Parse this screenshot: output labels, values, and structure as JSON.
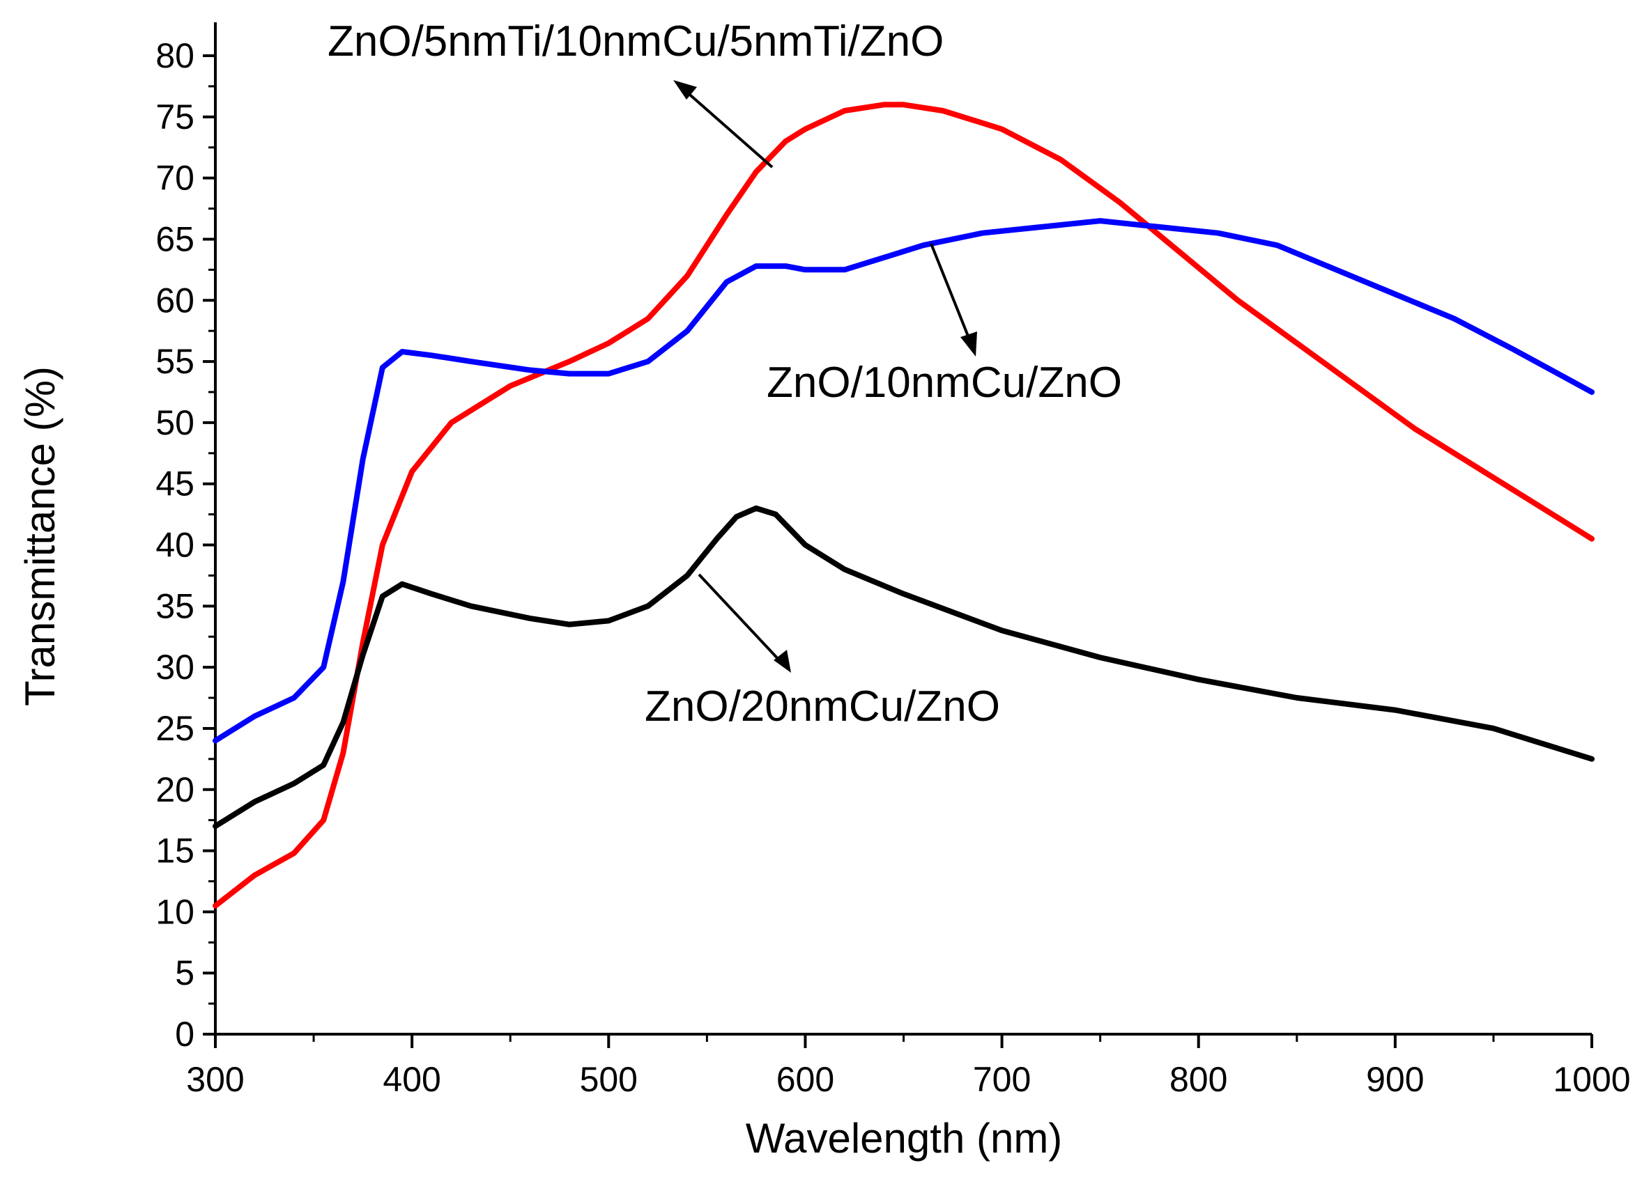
{
  "chart_data": {
    "type": "line",
    "xlabel": "Wavelength (nm)",
    "ylabel": "Transmittance (%)",
    "xlim": [
      300,
      1000
    ],
    "ylim": [
      0,
      82
    ],
    "xticks": [
      300,
      400,
      500,
      600,
      700,
      800,
      900,
      1000
    ],
    "yticks": [
      0,
      5,
      10,
      15,
      20,
      25,
      30,
      35,
      40,
      45,
      50,
      55,
      60,
      65,
      70,
      75,
      80
    ],
    "grid": false,
    "series": [
      {
        "name": "ZnO/5nmTi/10nmCu/5nmTi/ZnO",
        "color": "#ff0000",
        "x": [
          300,
          320,
          340,
          355,
          365,
          375,
          385,
          400,
          420,
          450,
          480,
          500,
          520,
          540,
          560,
          575,
          590,
          600,
          620,
          640,
          650,
          670,
          700,
          730,
          760,
          790,
          820,
          850,
          880,
          910,
          940,
          970,
          1000
        ],
        "y": [
          10.5,
          13.0,
          14.8,
          17.5,
          23.0,
          32.0,
          40.0,
          46.0,
          50.0,
          53.0,
          55.0,
          56.5,
          58.5,
          62.0,
          67.0,
          70.5,
          73.0,
          74.0,
          75.5,
          76.0,
          76.0,
          75.5,
          74.0,
          71.5,
          68.0,
          64.0,
          60.0,
          56.5,
          53.0,
          49.5,
          46.5,
          43.5,
          40.5
        ]
      },
      {
        "name": "ZnO/10nmCu/ZnO",
        "color": "#0000ff",
        "x": [
          300,
          320,
          340,
          355,
          365,
          375,
          385,
          395,
          410,
          430,
          460,
          480,
          500,
          520,
          540,
          560,
          575,
          590,
          600,
          620,
          640,
          660,
          690,
          720,
          750,
          780,
          810,
          840,
          870,
          900,
          930,
          960,
          1000
        ],
        "y": [
          24.0,
          26.0,
          27.5,
          30.0,
          37.0,
          47.0,
          54.5,
          55.8,
          55.5,
          55.0,
          54.3,
          54.0,
          54.0,
          55.0,
          57.5,
          61.5,
          62.8,
          62.8,
          62.5,
          62.5,
          63.5,
          64.5,
          65.5,
          66.0,
          66.5,
          66.0,
          65.5,
          64.5,
          62.5,
          60.5,
          58.5,
          56.0,
          52.5
        ]
      },
      {
        "name": "ZnO/20nmCu/ZnO",
        "color": "#000000",
        "x": [
          300,
          320,
          340,
          355,
          365,
          375,
          385,
          395,
          410,
          430,
          460,
          480,
          500,
          520,
          540,
          555,
          565,
          575,
          585,
          600,
          620,
          650,
          700,
          750,
          800,
          850,
          900,
          950,
          1000
        ],
        "y": [
          17.0,
          19.0,
          20.5,
          22.0,
          25.5,
          31.0,
          35.8,
          36.8,
          36.0,
          35.0,
          34.0,
          33.5,
          33.8,
          35.0,
          37.5,
          40.5,
          42.3,
          43.0,
          42.5,
          40.0,
          38.0,
          36.0,
          33.0,
          30.8,
          29.0,
          27.5,
          26.5,
          25.0,
          22.5
        ]
      }
    ],
    "annotations": [
      {
        "text": "ZnO/5nmTi/10nmCu/5nmTi/ZnO",
        "series": "ZnO/5nmTi/10nmCu/5nmTi/ZnO"
      },
      {
        "text": "ZnO/10nmCu/ZnO",
        "series": "ZnO/10nmCu/ZnO"
      },
      {
        "text": "ZnO/20nmCu/ZnO",
        "series": "ZnO/20nmCu/ZnO"
      }
    ]
  }
}
